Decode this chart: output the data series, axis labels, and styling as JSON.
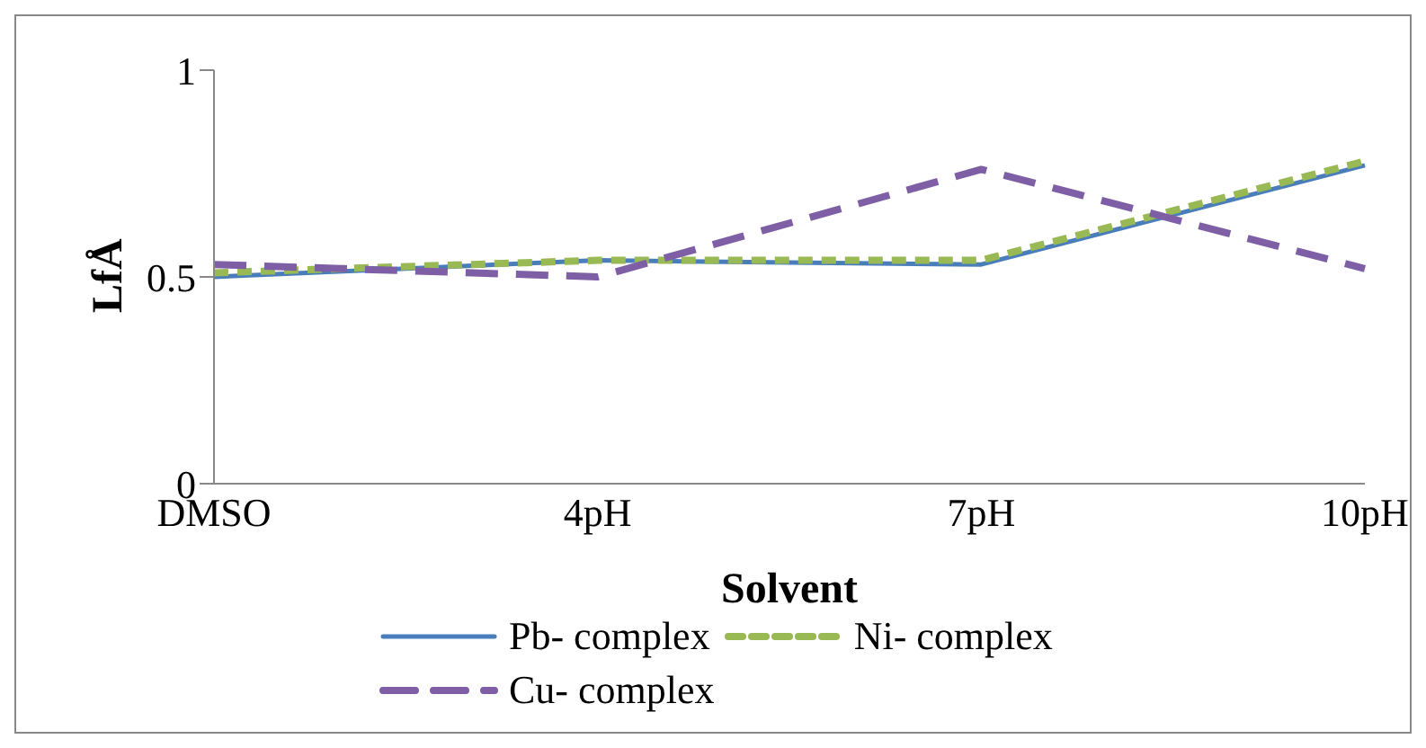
{
  "chart_data": {
    "type": "line",
    "xlabel": "Solvent",
    "ylabel": "LfÅ",
    "categories": [
      "DMSO",
      "4pH",
      "7pH",
      "10pH"
    ],
    "series": [
      {
        "name": "Pb- complex",
        "color": "#4a7ebb",
        "values": [
          0.5,
          0.54,
          0.53,
          0.77
        ],
        "line_style": "solid"
      },
      {
        "name": "Ni- complex",
        "color": "#98b954",
        "values": [
          0.51,
          0.54,
          0.54,
          0.78
        ],
        "line_style": "dotted"
      },
      {
        "name": "Cu- complex",
        "color": "#7e5fa6",
        "values": [
          0.53,
          0.5,
          0.76,
          0.52
        ],
        "line_style": "dashed"
      }
    ],
    "ylim": [
      0,
      1
    ],
    "yticks": [
      0,
      0.5,
      1
    ],
    "grid": false,
    "legend": "bottom",
    "marker": "none"
  }
}
